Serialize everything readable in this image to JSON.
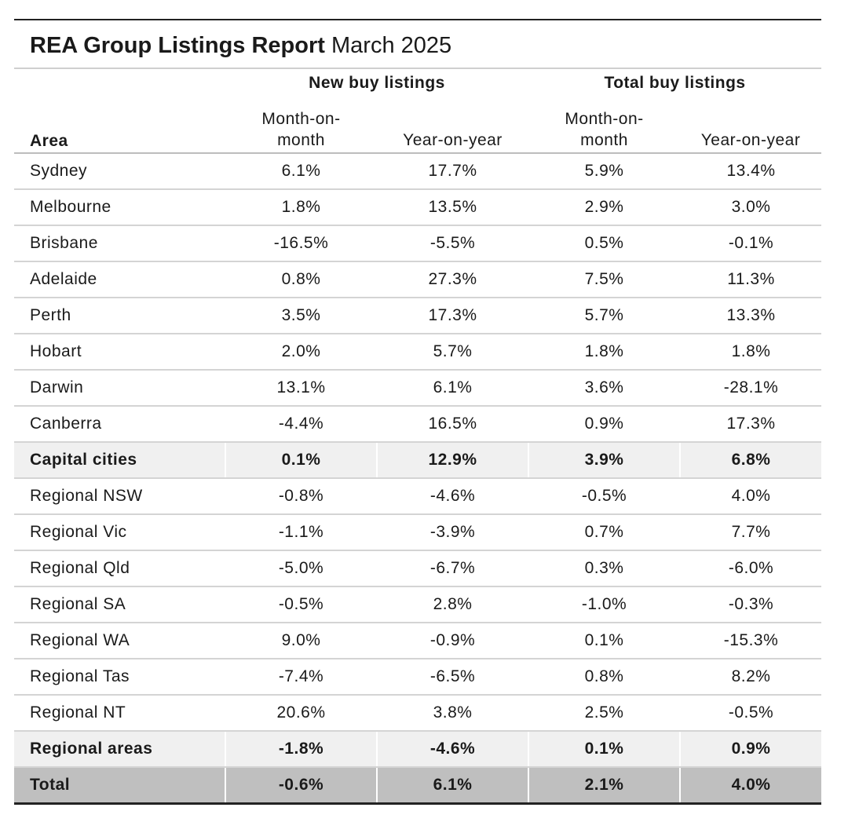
{
  "header": {
    "title": "REA Group Listings Report",
    "subtitle": "March 2025"
  },
  "table": {
    "group_headers": [
      "New buy listings",
      "Total buy listings"
    ],
    "columns": [
      "Area",
      "Month-on-month",
      "Year-on-year",
      "Month-on-month",
      "Year-on-year"
    ],
    "rows": [
      [
        "Sydney",
        "6.1%",
        "17.7%",
        "5.9%",
        "13.4%"
      ],
      [
        "Melbourne",
        "1.8%",
        "13.5%",
        "2.9%",
        "3.0%"
      ],
      [
        "Brisbane",
        "-16.5%",
        "-5.5%",
        "0.5%",
        "-0.1%"
      ],
      [
        "Adelaide",
        "0.8%",
        "27.3%",
        "7.5%",
        "11.3%"
      ],
      [
        "Perth",
        "3.5%",
        "17.3%",
        "5.7%",
        "13.3%"
      ],
      [
        "Hobart",
        "2.0%",
        "5.7%",
        "1.8%",
        "1.8%"
      ],
      [
        "Darwin",
        "13.1%",
        "6.1%",
        "3.6%",
        "-28.1%"
      ],
      [
        "Canberra",
        "-4.4%",
        "16.5%",
        "0.9%",
        "17.3%"
      ],
      [
        "Capital cities",
        "0.1%",
        "12.9%",
        "3.9%",
        "6.8%"
      ],
      [
        "Regional NSW",
        "-0.8%",
        "-4.6%",
        "-0.5%",
        "4.0%"
      ],
      [
        "Regional Vic",
        "-1.1%",
        "-3.9%",
        "0.7%",
        "7.7%"
      ],
      [
        "Regional Qld",
        "-5.0%",
        "-6.7%",
        "0.3%",
        "-6.0%"
      ],
      [
        "Regional SA",
        "-0.5%",
        "2.8%",
        "-1.0%",
        "-0.3%"
      ],
      [
        "Regional WA",
        "9.0%",
        "-0.9%",
        "0.1%",
        "-15.3%"
      ],
      [
        "Regional Tas",
        "-7.4%",
        "-6.5%",
        "0.8%",
        "8.2%"
      ],
      [
        "Regional NT",
        "20.6%",
        "3.8%",
        "2.5%",
        "-0.5%"
      ],
      [
        "Regional areas",
        "-1.8%",
        "-4.6%",
        "0.1%",
        "0.9%"
      ],
      [
        "Total",
        "-0.6%",
        "6.1%",
        "2.1%",
        "4.0%"
      ]
    ]
  }
}
